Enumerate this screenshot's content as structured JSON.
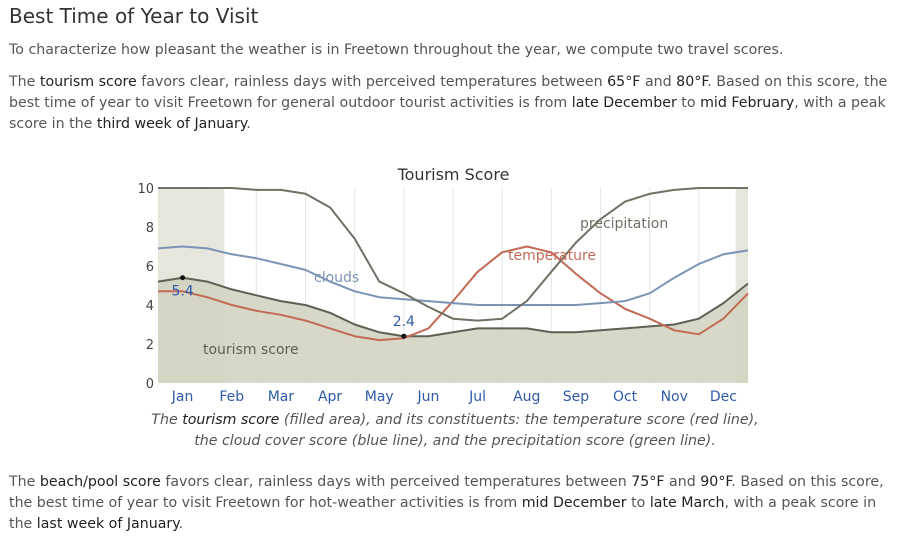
{
  "heading": "Best Time of Year to Visit",
  "intro": "To characterize how pleasant the weather is in Freetown throughout the year, we compute two travel scores.",
  "tourism_paragraph": {
    "t1": "The ",
    "k1": "tourism score",
    "t2": " favors clear, rainless days with perceived temperatures between ",
    "k2": "65°F",
    "t3": " and ",
    "k3": "80°F",
    "t4": ". Based on this score, the best time of year to visit Freetown for general outdoor tourist activities is from ",
    "k4": "late December",
    "t5": " to ",
    "k5": "mid February",
    "t6": ", with a peak score in the ",
    "k6": "third week of January",
    "t7": "."
  },
  "caption": {
    "t1": "The ",
    "k1": "tourism score",
    "t2": " (filled area), and its constituents: the temperature score (red line), the cloud cover score (blue line), and the precipitation score (green line)."
  },
  "beach_paragraph": {
    "t1": "The ",
    "k1": "beach/pool score",
    "t2": " favors clear, rainless days with perceived temperatures between ",
    "k2": "75°F",
    "t3": " and ",
    "k3": "90°F",
    "t4": ". Based on this score, the best time of year to visit Freetown for hot-weather activities is from ",
    "k4": "mid December",
    "t5": " to ",
    "k5": "late March",
    "t6": ", with a peak score in the ",
    "k6": "last week of January",
    "t7": "."
  },
  "colors": {
    "tourism_fill": "#d1d1bf",
    "tourism_line": "#5f5f52",
    "temperature": "#c26a56",
    "clouds": "#7b93b5",
    "precipitation": "#707066",
    "best_band": "#c8c8b4",
    "month_label": "#2f5aa8"
  },
  "chart_data": {
    "type": "area",
    "title": "Tourism Score",
    "xlabel": "",
    "ylabel": "",
    "ylim": [
      0,
      10
    ],
    "yticks": [
      "0",
      "2",
      "4",
      "6",
      "8",
      "10"
    ],
    "months": [
      "Jan",
      "Feb",
      "Mar",
      "Apr",
      "May",
      "Jun",
      "Jul",
      "Aug",
      "Sep",
      "Oct",
      "Nov",
      "Dec"
    ],
    "x_domain": [
      0,
      12
    ],
    "best_periods": [
      [
        0,
        1.35
      ],
      [
        11.75,
        12
      ]
    ],
    "series": [
      {
        "key": "tourism",
        "name": "tourism score",
        "x": [
          0,
          0.5,
          1.0,
          1.5,
          2.0,
          2.5,
          3.0,
          3.5,
          4.0,
          4.5,
          5.0,
          5.5,
          6.0,
          6.5,
          7.0,
          7.5,
          8.0,
          8.5,
          9.0,
          9.5,
          10.0,
          10.5,
          11.0,
          11.5,
          12.0
        ],
        "y": [
          5.2,
          5.4,
          5.2,
          4.8,
          4.5,
          4.2,
          4.0,
          3.6,
          3.0,
          2.6,
          2.4,
          2.4,
          2.6,
          2.8,
          2.8,
          2.8,
          2.6,
          2.6,
          2.7,
          2.8,
          2.9,
          3.0,
          3.3,
          4.1,
          5.1
        ]
      },
      {
        "key": "temperature",
        "name": "temperature",
        "x": [
          0,
          0.5,
          1.0,
          1.5,
          2.0,
          2.5,
          3.0,
          3.5,
          4.0,
          4.5,
          5.0,
          5.5,
          6.0,
          6.5,
          7.0,
          7.5,
          8.0,
          8.5,
          9.0,
          9.5,
          10.0,
          10.5,
          11.0,
          11.5,
          12.0
        ],
        "y": [
          4.7,
          4.7,
          4.4,
          4.0,
          3.7,
          3.5,
          3.2,
          2.8,
          2.4,
          2.2,
          2.3,
          2.8,
          4.2,
          5.7,
          6.7,
          7.0,
          6.7,
          5.6,
          4.6,
          3.8,
          3.3,
          2.7,
          2.5,
          3.3,
          4.6
        ]
      },
      {
        "key": "clouds",
        "name": "clouds",
        "x": [
          0,
          0.5,
          1.0,
          1.5,
          2.0,
          2.5,
          3.0,
          3.5,
          4.0,
          4.5,
          5.0,
          5.5,
          6.0,
          6.5,
          7.0,
          7.5,
          8.0,
          8.5,
          9.0,
          9.5,
          10.0,
          10.5,
          11.0,
          11.5,
          12.0
        ],
        "y": [
          6.9,
          7.0,
          6.9,
          6.6,
          6.4,
          6.1,
          5.8,
          5.2,
          4.7,
          4.4,
          4.3,
          4.2,
          4.1,
          4.0,
          4.0,
          4.0,
          4.0,
          4.0,
          4.1,
          4.2,
          4.6,
          5.4,
          6.1,
          6.6,
          6.8
        ]
      },
      {
        "key": "precipitation",
        "name": "precipitation",
        "x": [
          0,
          0.5,
          1.0,
          1.5,
          2.0,
          2.5,
          3.0,
          3.5,
          4.0,
          4.5,
          5.0,
          5.5,
          6.0,
          6.5,
          7.0,
          7.5,
          8.0,
          8.5,
          9.0,
          9.5,
          10.0,
          10.5,
          11.0,
          11.5,
          12.0
        ],
        "y": [
          10.0,
          10.0,
          10.0,
          10.0,
          9.9,
          9.9,
          9.7,
          9.0,
          7.4,
          5.2,
          4.6,
          3.9,
          3.3,
          3.2,
          3.3,
          4.2,
          5.7,
          7.2,
          8.4,
          9.3,
          9.7,
          9.9,
          10.0,
          10.0,
          10.0
        ]
      }
    ],
    "annotations": [
      {
        "label": "5.4",
        "x": 0.5,
        "y": 5.4
      },
      {
        "label": "2.4",
        "x": 5.0,
        "y": 2.4
      }
    ]
  }
}
